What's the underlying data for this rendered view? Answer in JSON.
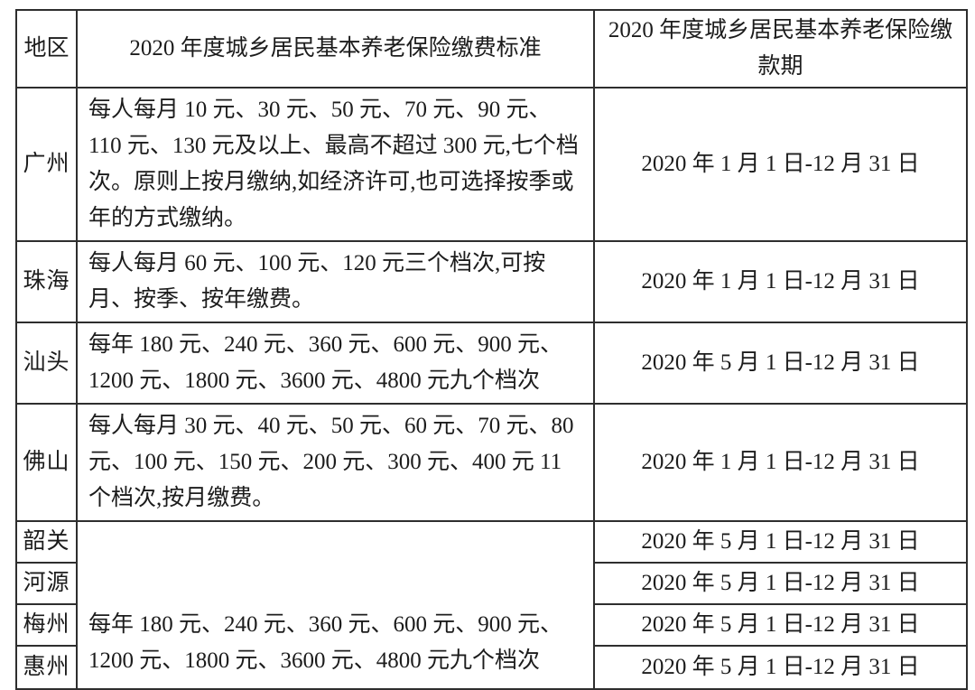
{
  "table": {
    "headers": {
      "region": "地区",
      "standard": "2020 年度城乡居民基本养老保险缴费标准",
      "period": "2020 年度城乡居民基本养老保险缴款期"
    },
    "rows": [
      {
        "region": "广州",
        "standard": "每人每月 10 元、30 元、50 元、70 元、90 元、110 元、130 元及以上、最高不超过 300 元,七个档次。原则上按月缴纳,如经济许可,也可选择按季或年的方式缴纳。",
        "period": "2020 年 1 月 1 日-12 月 31 日"
      },
      {
        "region": "珠海",
        "standard": "每人每月 60 元、100 元、120 元三个档次,可按月、按季、按年缴费。",
        "period": "2020 年 1 月 1 日-12 月 31 日"
      },
      {
        "region": "汕头",
        "standard": "每年 180 元、240 元、360 元、600 元、900 元、1200 元、1800 元、3600 元、4800 元九个档次",
        "period": "2020 年 5 月 1 日-12 月 31 日"
      },
      {
        "region": "佛山",
        "standard": "每人每月 30 元、40 元、50 元、60 元、70 元、80 元、100 元、150 元、200 元、300 元、400 元 11 个档次,按月缴费。",
        "period": "2020 年 1 月 1 日-12 月 31 日"
      },
      {
        "region": "韶关",
        "period": "2020 年 5 月 1 日-12 月 31 日"
      },
      {
        "region": "河源",
        "period": "2020 年 5 月 1 日-12 月 31 日"
      },
      {
        "region": "梅州",
        "period": "2020 年 5 月 1 日-12 月 31 日"
      },
      {
        "region": "惠州",
        "period": "2020 年 5 月 1 日-12 月 31 日"
      }
    ],
    "merged_standard": "每年 180 元、240 元、360 元、600 元、900 元、1200 元、1800 元、3600 元、4800 元九个档次"
  }
}
